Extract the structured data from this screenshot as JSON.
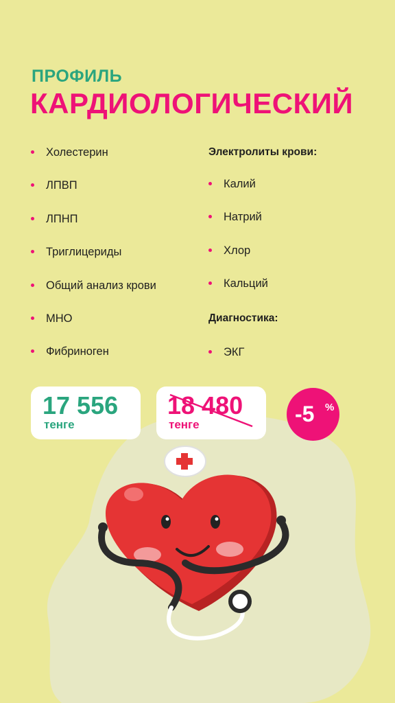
{
  "header": {
    "subtitle": "ПРОФИЛЬ",
    "title": "КАРДИОЛОГИЧЕСКИЙ"
  },
  "left_list": [
    "Холестерин",
    "ЛПВП",
    "ЛПНП",
    "Триглицериды",
    "Общий анализ крови",
    "МНО",
    "Фибриноген"
  ],
  "electrolytes": {
    "heading": "Электролиты крови:",
    "items": [
      "Калий",
      "Натрий",
      "Хлор",
      "Кальций"
    ]
  },
  "diagnostics": {
    "heading": "Диагностика:",
    "items": [
      "ЭКГ"
    ]
  },
  "price": {
    "new_value": "17 556",
    "new_currency": "тенге",
    "old_value": "18 480",
    "old_currency": "тенге",
    "discount": "-5",
    "discount_sign": "%"
  },
  "colors": {
    "background": "#ebe999",
    "accent_pink": "#ee1277",
    "accent_green": "#2aa57e",
    "heart_red": "#e53434"
  },
  "icons": {
    "heart": "heart-doctor-illustration",
    "bullet": "dot-bullet"
  }
}
